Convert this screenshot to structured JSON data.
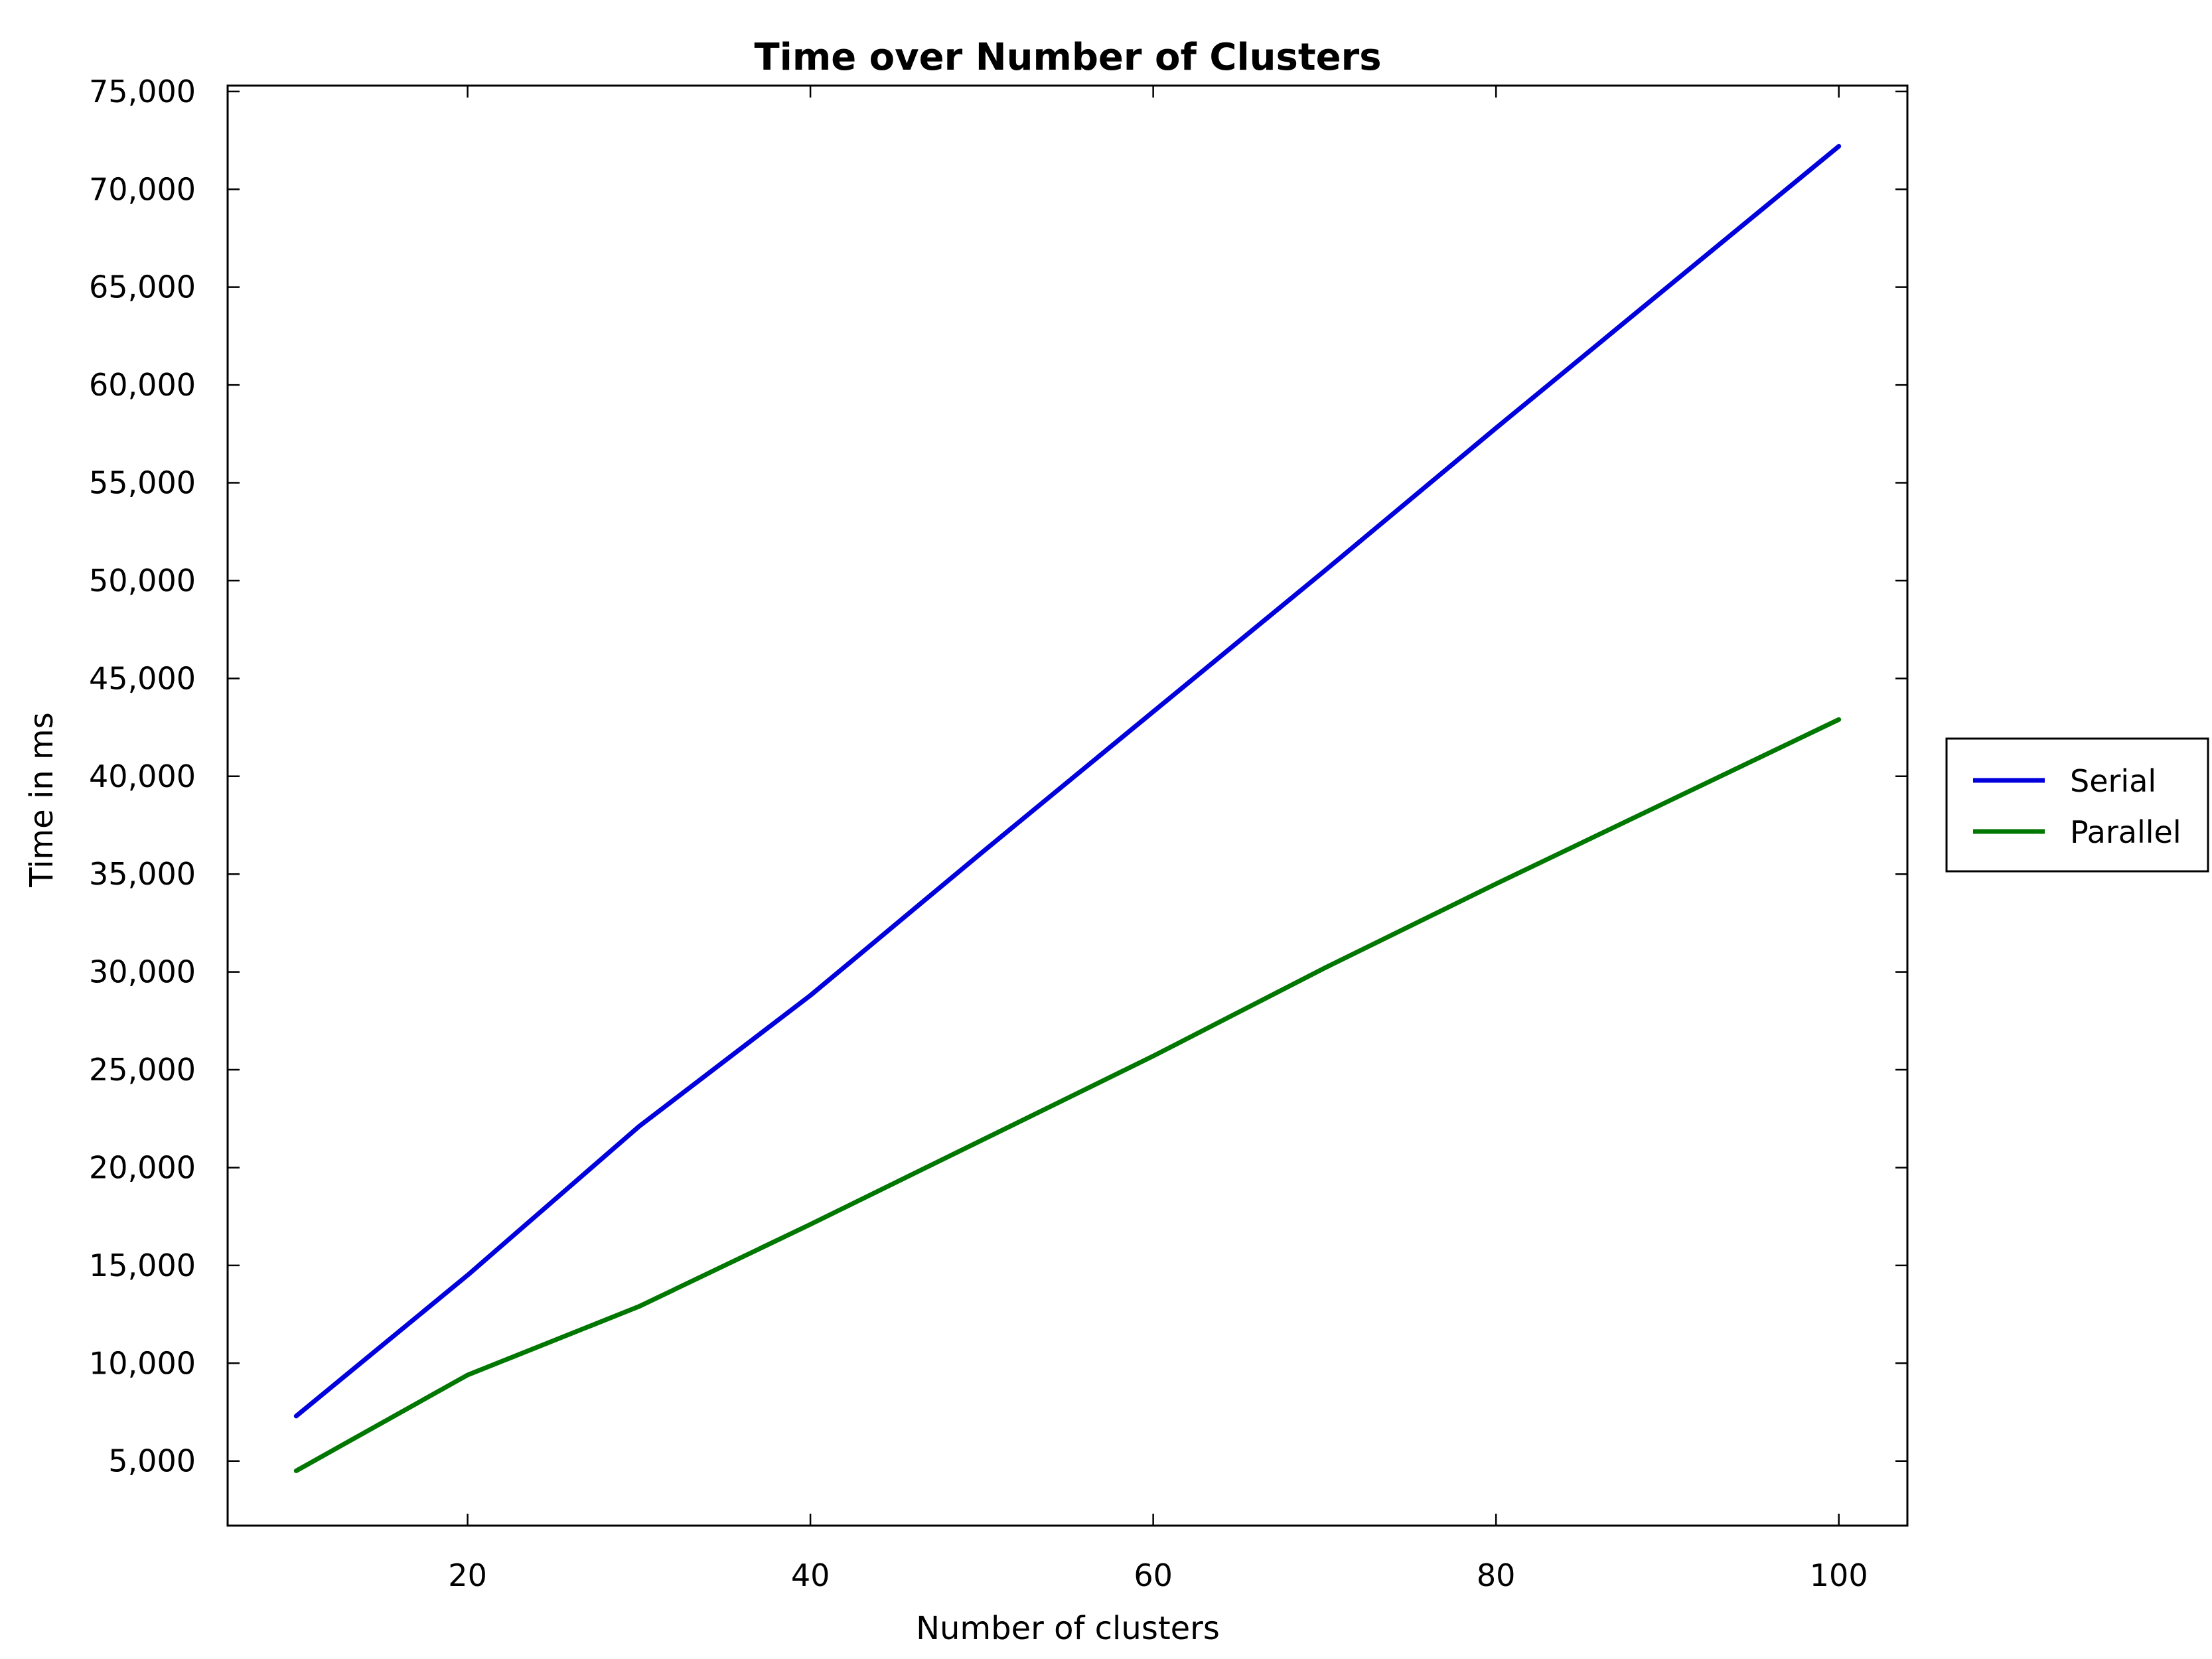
{
  "chart_data": {
    "type": "line",
    "title": "Time over Number of Clusters",
    "xlabel": "Number of clusters",
    "ylabel": "Time in ms",
    "x": [
      10,
      20,
      30,
      40,
      50,
      60,
      70,
      80,
      90,
      100
    ],
    "xlim": [
      6,
      104
    ],
    "ylim": [
      1700,
      75300
    ],
    "xticks": [
      20,
      40,
      60,
      80,
      100
    ],
    "xtick_labels": [
      "20",
      "40",
      "60",
      "80",
      "100"
    ],
    "yticks": [
      5000,
      10000,
      15000,
      20000,
      25000,
      30000,
      35000,
      40000,
      45000,
      50000,
      55000,
      60000,
      65000,
      70000,
      75000
    ],
    "ytick_labels": [
      "5,000",
      "10,000",
      "15,000",
      "20,000",
      "25,000",
      "30,000",
      "35,000",
      "40,000",
      "45,000",
      "50,000",
      "55,000",
      "60,000",
      "65,000",
      "70,000",
      "75,000"
    ],
    "grid": false,
    "legend_position": "outside right",
    "series": [
      {
        "name": "Serial",
        "color": "#0000dd",
        "values": [
          7300,
          14500,
          22100,
          28800,
          36100,
          43300,
          50500,
          57800,
          65000,
          72200
        ]
      },
      {
        "name": "Parallel",
        "color": "#007700",
        "values": [
          4500,
          9400,
          12900,
          17100,
          21400,
          25700,
          30200,
          34500,
          38700,
          42900
        ]
      }
    ]
  }
}
